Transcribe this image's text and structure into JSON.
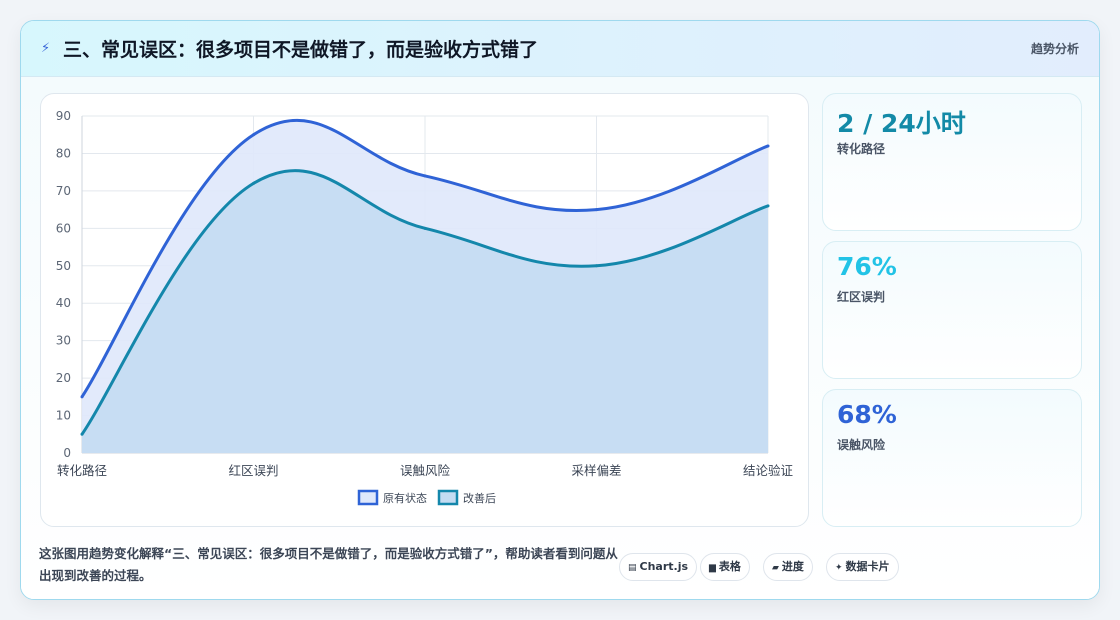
{
  "header": {
    "title": "三、常见误区：很多项目不是做错了，而是验收方式错了",
    "icon": "lightning-icon",
    "tag": "趋势分析"
  },
  "stats": [
    {
      "value": "2 / 24小时",
      "label": "转化路径",
      "color": "#138aa7"
    },
    {
      "value": "76%",
      "label": "红区误判",
      "color": "#22c3e6"
    },
    {
      "value": "68%",
      "label": "误触风险",
      "color": "#2f63d6"
    }
  ],
  "description": "这张图用趋势变化解释“三、常见误区：很多项目不是做错了，而是验收方式错了”，帮助读者看到问题从出现到改善的过程。",
  "chips": [
    {
      "icon": "chart-icon",
      "glyph": "▤",
      "label": "Chart.js"
    },
    {
      "icon": "table-icon",
      "glyph": "▆",
      "label": "表格"
    },
    {
      "icon": "progress-icon",
      "glyph": "▰",
      "label": "进度"
    },
    {
      "icon": "sparkle-icon",
      "glyph": "✦",
      "label": "数据卡片"
    }
  ],
  "chart_data": {
    "type": "area",
    "categories": [
      "转化路径",
      "红区误判",
      "误触风险",
      "采样偏差",
      "结论验证"
    ],
    "series": [
      {
        "name": "原有状态",
        "values": [
          15,
          85,
          74,
          65,
          82
        ],
        "color": "#2f63d6",
        "fill": "#dfe8fb"
      },
      {
        "name": "改善后",
        "values": [
          5,
          72,
          60,
          50,
          66
        ],
        "color": "#1487ab",
        "fill": "#c4dcf2"
      }
    ],
    "ylim": [
      0,
      90
    ],
    "yticks": [
      0,
      10,
      20,
      30,
      40,
      50,
      60,
      70,
      80,
      90
    ],
    "grid": true,
    "legend": "bottom"
  }
}
